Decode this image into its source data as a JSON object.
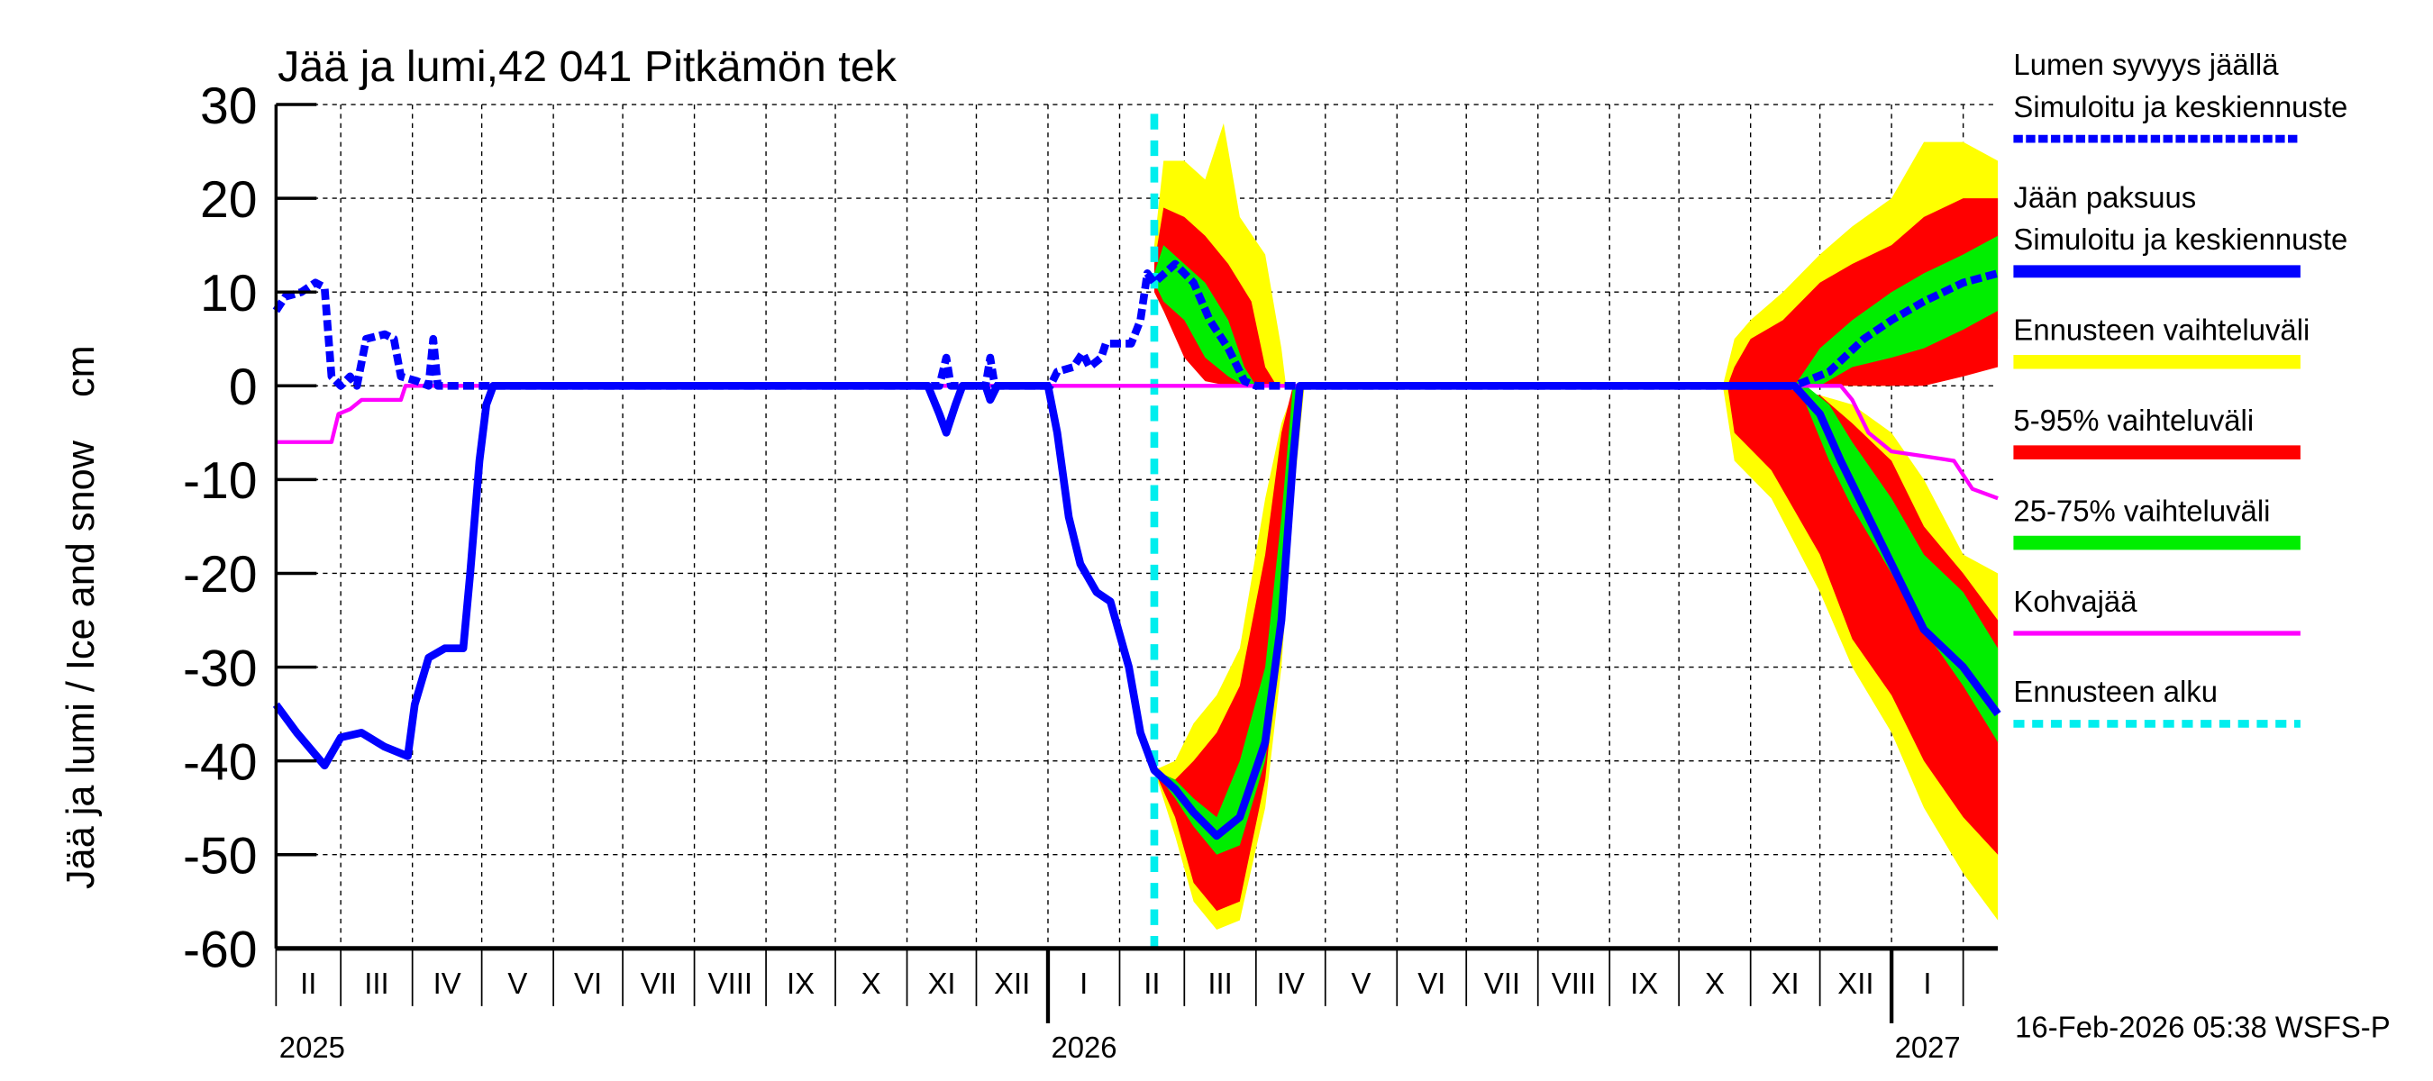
{
  "chart_data": {
    "type": "area",
    "title": "Jää ja lumi,42 041 Pitkämön tek",
    "ylabel": "Jää ja lumi / Ice and snow    cm",
    "ylim": [
      -60,
      30
    ],
    "yticks": [
      30,
      20,
      10,
      0,
      -10,
      -20,
      -30,
      -40,
      -50,
      -60
    ],
    "xlim": [
      "2025-02-01",
      "2027-02-16"
    ],
    "month_labels": [
      "II",
      "III",
      "IV",
      "V",
      "VI",
      "VII",
      "VIII",
      "IX",
      "X",
      "XI",
      "XII",
      "I",
      "II",
      "III",
      "IV",
      "V",
      "VI",
      "VII",
      "VIII",
      "IX",
      "X",
      "XI",
      "XII",
      "I"
    ],
    "year_labels": [
      {
        "date": "2025-02-01",
        "label": "2025"
      },
      {
        "date": "2026-01-01",
        "label": "2026"
      },
      {
        "date": "2027-01-01",
        "label": "2027"
      }
    ],
    "grid": true,
    "forecast_start": "2026-02-16",
    "timestamp": "16-Feb-2026 05:38 WSFS-P",
    "colors": {
      "snow": "#0000ff",
      "ice": "#0000ff",
      "range": "#ffff00",
      "p5_95": "#ff0000",
      "p25_75": "#00ee00",
      "kohvajaa": "#ff00ff",
      "forecast_start": "#00eeee"
    },
    "legend": {
      "position": "right",
      "items": [
        {
          "label1": "Lumen syvyys jäällä",
          "label2": "Simuloitu ja keskiennuste",
          "style": "dashed-blue"
        },
        {
          "label1": "Jään paksuus",
          "label2": "Simuloitu ja keskiennuste",
          "style": "solid-blue"
        },
        {
          "label1": "Ennusteen vaihteluväli",
          "style": "yellow"
        },
        {
          "label1": "5-95% vaihteluväli",
          "style": "red"
        },
        {
          "label1": "25-75% vaihteluväli",
          "style": "green"
        },
        {
          "label1": "Kohvajää",
          "style": "magenta"
        },
        {
          "label1": "Ennusteen alku",
          "style": "cyan-dashed"
        }
      ]
    },
    "bands": {
      "range": [
        [
          [
            "2026-02-16",
            10,
            15
          ],
          [
            "2026-02-20",
            8,
            24
          ],
          [
            "2026-03-01",
            5,
            24
          ],
          [
            "2026-03-10",
            2,
            22
          ],
          [
            "2026-03-18",
            1,
            28
          ],
          [
            "2026-03-25",
            0,
            18
          ],
          [
            "2026-04-05",
            0,
            14
          ],
          [
            "2026-04-12",
            0,
            4
          ],
          [
            "2026-04-14",
            0,
            0
          ]
        ],
        [
          [
            "2026-10-20",
            0,
            0
          ],
          [
            "2026-10-25",
            0,
            5
          ],
          [
            "2026-11-01",
            0,
            7
          ],
          [
            "2026-11-15",
            0,
            10
          ],
          [
            "2026-12-01",
            0,
            14
          ],
          [
            "2026-12-15",
            0,
            17
          ],
          [
            "2027-01-01",
            0,
            20
          ],
          [
            "2027-01-15",
            1,
            26
          ],
          [
            "2027-02-01",
            3,
            26
          ],
          [
            "2027-02-16",
            5,
            24
          ]
        ],
        [
          [
            "2026-02-16",
            -41,
            -41
          ],
          [
            "2026-02-25",
            -48,
            -40
          ],
          [
            "2026-03-05",
            -55,
            -36
          ],
          [
            "2026-03-15",
            -58,
            -33
          ],
          [
            "2026-03-25",
            -57,
            -28
          ],
          [
            "2026-04-05",
            -45,
            -12
          ],
          [
            "2026-04-12",
            -30,
            -4
          ],
          [
            "2026-04-18",
            -10,
            0
          ],
          [
            "2026-04-22",
            0,
            0
          ]
        ],
        [
          [
            "2026-10-20",
            0,
            0
          ],
          [
            "2026-10-25",
            -8,
            0
          ],
          [
            "2026-11-10",
            -12,
            0
          ],
          [
            "2026-12-01",
            -22,
            -1
          ],
          [
            "2026-12-15",
            -30,
            -2
          ],
          [
            "2027-01-01",
            -37,
            -5
          ],
          [
            "2027-01-15",
            -45,
            -10
          ],
          [
            "2027-02-01",
            -52,
            -18
          ],
          [
            "2027-02-16",
            -57,
            -20
          ]
        ]
      ],
      "p5_95": [
        [
          [
            "2026-02-16",
            10,
            13
          ],
          [
            "2026-02-20",
            8,
            19
          ],
          [
            "2026-03-01",
            3,
            18
          ],
          [
            "2026-03-10",
            0.5,
            16
          ],
          [
            "2026-03-20",
            0,
            13
          ],
          [
            "2026-03-30",
            0,
            9
          ],
          [
            "2026-04-05",
            0,
            2
          ],
          [
            "2026-04-10",
            0,
            0
          ]
        ],
        [
          [
            "2026-10-22",
            0,
            0
          ],
          [
            "2026-10-25",
            0,
            2
          ],
          [
            "2026-11-01",
            0,
            5
          ],
          [
            "2026-11-15",
            0,
            7
          ],
          [
            "2026-12-01",
            0,
            11
          ],
          [
            "2026-12-15",
            0,
            13
          ],
          [
            "2027-01-01",
            0,
            15
          ],
          [
            "2027-01-15",
            0,
            18
          ],
          [
            "2027-02-01",
            1,
            20
          ],
          [
            "2027-02-16",
            2,
            20
          ]
        ],
        [
          [
            "2026-02-16",
            -41,
            -41
          ],
          [
            "2026-02-25",
            -46,
            -42
          ],
          [
            "2026-03-05",
            -53,
            -40
          ],
          [
            "2026-03-15",
            -56,
            -37
          ],
          [
            "2026-03-25",
            -55,
            -32
          ],
          [
            "2026-04-05",
            -42,
            -18
          ],
          [
            "2026-04-12",
            -25,
            -5
          ],
          [
            "2026-04-17",
            -5,
            0
          ],
          [
            "2026-04-20",
            0,
            0
          ]
        ],
        [
          [
            "2026-10-22",
            0,
            0
          ],
          [
            "2026-10-25",
            -5,
            0
          ],
          [
            "2026-11-10",
            -9,
            0
          ],
          [
            "2026-12-01",
            -18,
            -1
          ],
          [
            "2026-12-15",
            -27,
            -4
          ],
          [
            "2027-01-01",
            -33,
            -8
          ],
          [
            "2027-01-15",
            -40,
            -15
          ],
          [
            "2027-02-01",
            -46,
            -20
          ],
          [
            "2027-02-16",
            -50,
            -25
          ]
        ]
      ],
      "p25_75": [
        [
          [
            "2026-02-16",
            11,
            12
          ],
          [
            "2026-02-20",
            9,
            15
          ],
          [
            "2026-03-01",
            7,
            13
          ],
          [
            "2026-03-10",
            3,
            11
          ],
          [
            "2026-03-20",
            1,
            7
          ],
          [
            "2026-03-27",
            0,
            2
          ],
          [
            "2026-04-01",
            0,
            0
          ]
        ],
        [
          [
            "2026-11-20",
            0,
            0
          ],
          [
            "2026-12-01",
            0,
            4
          ],
          [
            "2026-12-15",
            2,
            7
          ],
          [
            "2027-01-01",
            3,
            10
          ],
          [
            "2027-01-15",
            4,
            12
          ],
          [
            "2027-02-01",
            6,
            14
          ],
          [
            "2027-02-16",
            8,
            16
          ]
        ],
        [
          [
            "2026-02-16",
            -41,
            -41
          ],
          [
            "2026-02-25",
            -44,
            -42
          ],
          [
            "2026-03-05",
            -47,
            -44
          ],
          [
            "2026-03-15",
            -50,
            -46
          ],
          [
            "2026-03-25",
            -49,
            -40
          ],
          [
            "2026-04-05",
            -40,
            -30
          ],
          [
            "2026-04-12",
            -28,
            -14
          ],
          [
            "2026-04-17",
            -8,
            0
          ],
          [
            "2026-04-19",
            0,
            0
          ]
        ],
        [
          [
            "2026-11-20",
            0,
            0
          ],
          [
            "2026-11-25",
            -2,
            0
          ],
          [
            "2026-12-05",
            -8,
            -2
          ],
          [
            "2026-12-15",
            -13,
            -6
          ],
          [
            "2027-01-01",
            -20,
            -12
          ],
          [
            "2027-01-15",
            -26,
            -18
          ],
          [
            "2027-02-01",
            -32,
            -22
          ],
          [
            "2027-02-16",
            -38,
            -28
          ]
        ]
      ]
    },
    "series": [
      {
        "name": "Kohvajää",
        "style": "magenta",
        "points": [
          [
            "2025-02-01",
            -6
          ],
          [
            "2025-02-25",
            -6
          ],
          [
            "2025-02-28",
            -3
          ],
          [
            "2025-03-05",
            -2.5
          ],
          [
            "2025-03-10",
            -1.5
          ],
          [
            "2025-03-27",
            -1.5
          ],
          [
            "2025-03-29",
            0
          ],
          [
            "2026-12-10",
            0
          ],
          [
            "2026-12-15",
            -1.5
          ],
          [
            "2026-12-22",
            -5
          ],
          [
            "2027-01-01",
            -7
          ],
          [
            "2027-01-15",
            -7.5
          ],
          [
            "2027-01-28",
            -8
          ],
          [
            "2027-02-05",
            -11
          ],
          [
            "2027-02-16",
            -12
          ]
        ]
      },
      {
        "name": "Jään paksuus",
        "style": "solid-blue",
        "points": [
          [
            "2025-02-01",
            -34
          ],
          [
            "2025-02-10",
            -37
          ],
          [
            "2025-02-22",
            -40.5
          ],
          [
            "2025-03-01",
            -37.5
          ],
          [
            "2025-03-10",
            -37
          ],
          [
            "2025-03-20",
            -38.5
          ],
          [
            "2025-03-30",
            -39.5
          ],
          [
            "2025-04-02",
            -34
          ],
          [
            "2025-04-08",
            -29
          ],
          [
            "2025-04-15",
            -28
          ],
          [
            "2025-04-23",
            -28
          ],
          [
            "2025-04-26",
            -20
          ],
          [
            "2025-04-30",
            -8
          ],
          [
            "2025-05-03",
            -2
          ],
          [
            "2025-05-06",
            0
          ],
          [
            "2025-11-10",
            0
          ],
          [
            "2025-11-15",
            -3
          ],
          [
            "2025-11-18",
            -5
          ],
          [
            "2025-11-22",
            -2
          ],
          [
            "2025-11-25",
            0
          ],
          [
            "2025-12-05",
            0
          ],
          [
            "2025-12-07",
            -1.5
          ],
          [
            "2025-12-10",
            0
          ],
          [
            "2026-01-01",
            0
          ],
          [
            "2026-01-05",
            -5
          ],
          [
            "2026-01-10",
            -14
          ],
          [
            "2026-01-15",
            -19
          ],
          [
            "2026-01-22",
            -22
          ],
          [
            "2026-01-28",
            -23
          ],
          [
            "2026-02-05",
            -30
          ],
          [
            "2026-02-10",
            -37
          ],
          [
            "2026-02-16",
            -41
          ],
          [
            "2026-02-25",
            -43
          ],
          [
            "2026-03-05",
            -45.5
          ],
          [
            "2026-03-15",
            -48
          ],
          [
            "2026-03-25",
            -46
          ],
          [
            "2026-04-05",
            -38
          ],
          [
            "2026-04-12",
            -25
          ],
          [
            "2026-04-17",
            -8
          ],
          [
            "2026-04-20",
            0
          ],
          [
            "2026-11-20",
            0
          ],
          [
            "2026-12-01",
            -3
          ],
          [
            "2026-12-10",
            -8
          ],
          [
            "2026-12-20",
            -13
          ],
          [
            "2027-01-01",
            -19
          ],
          [
            "2027-01-15",
            -26
          ],
          [
            "2027-02-01",
            -30
          ],
          [
            "2027-02-16",
            -35
          ]
        ]
      },
      {
        "name": "Lumen syvyys jäällä",
        "style": "dashed-blue",
        "points": [
          [
            "2025-02-01",
            8
          ],
          [
            "2025-02-05",
            9.5
          ],
          [
            "2025-02-12",
            10
          ],
          [
            "2025-02-18",
            11
          ],
          [
            "2025-02-22",
            10.5
          ],
          [
            "2025-02-25",
            1
          ],
          [
            "2025-03-01",
            0
          ],
          [
            "2025-03-05",
            1
          ],
          [
            "2025-03-08",
            0
          ],
          [
            "2025-03-12",
            5
          ],
          [
            "2025-03-20",
            5.5
          ],
          [
            "2025-03-24",
            5
          ],
          [
            "2025-03-27",
            1
          ],
          [
            "2025-04-03",
            0.5
          ],
          [
            "2025-04-08",
            0
          ],
          [
            "2025-04-10",
            5
          ],
          [
            "2025-04-12",
            0
          ],
          [
            "2025-11-15",
            0
          ],
          [
            "2025-11-18",
            3
          ],
          [
            "2025-11-20",
            0
          ],
          [
            "2025-12-05",
            0
          ],
          [
            "2025-12-07",
            3
          ],
          [
            "2025-12-09",
            0
          ],
          [
            "2026-01-02",
            0
          ],
          [
            "2026-01-05",
            1.5
          ],
          [
            "2026-01-12",
            2
          ],
          [
            "2026-01-16",
            3.5
          ],
          [
            "2026-01-19",
            2
          ],
          [
            "2026-01-24",
            3
          ],
          [
            "2026-01-26",
            4.5
          ],
          [
            "2026-02-06",
            4.5
          ],
          [
            "2026-02-10",
            7
          ],
          [
            "2026-02-13",
            12
          ],
          [
            "2026-02-16",
            11
          ],
          [
            "2026-02-25",
            13
          ],
          [
            "2026-03-05",
            11
          ],
          [
            "2026-03-12",
            7
          ],
          [
            "2026-03-20",
            4
          ],
          [
            "2026-03-27",
            0.5
          ],
          [
            "2026-04-01",
            0
          ],
          [
            "2026-11-20",
            0
          ],
          [
            "2026-12-05",
            1.5
          ],
          [
            "2026-12-20",
            5
          ],
          [
            "2027-01-01",
            7
          ],
          [
            "2027-01-15",
            9
          ],
          [
            "2027-02-01",
            11
          ],
          [
            "2027-02-16",
            12
          ]
        ]
      }
    ]
  }
}
